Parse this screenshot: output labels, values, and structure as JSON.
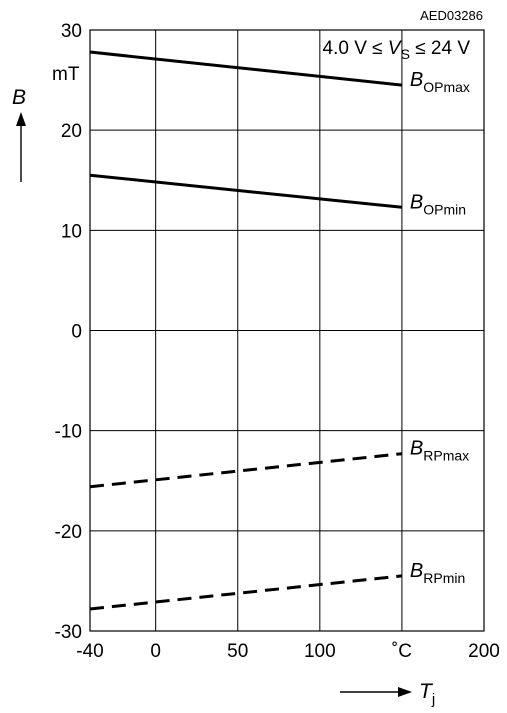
{
  "chart_data": {
    "type": "line",
    "reference_code": "AED03286",
    "annotation": {
      "prefix": "4.0 V ≤ ",
      "var": "V",
      "sub": "S",
      "suffix": " ≤ 24 V"
    },
    "ylabel": {
      "var": "B",
      "unit": "mT"
    },
    "xlabel": {
      "var": "T",
      "sub": "j",
      "unit": "˚C"
    },
    "xlim": [
      -40,
      200
    ],
    "ylim": [
      -30,
      30
    ],
    "x_ticks": [
      -40,
      0,
      50,
      100,
      150,
      200
    ],
    "x_tick_labels": [
      "-40",
      "0",
      "50",
      "100",
      "˚C",
      "200"
    ],
    "y_ticks": [
      30,
      20,
      10,
      0,
      -10,
      -20,
      -30
    ],
    "y_tick_labels": [
      "30",
      "20",
      "10",
      "0",
      "-10",
      "-20",
      "-30"
    ],
    "grid": true,
    "series": [
      {
        "name": "B",
        "sub": "OPmax",
        "style": "solid",
        "x": [
          -40,
          150
        ],
        "y": [
          27.8,
          24.5
        ]
      },
      {
        "name": "B",
        "sub": "OPmin",
        "style": "solid",
        "x": [
          -40,
          150
        ],
        "y": [
          15.5,
          12.3
        ]
      },
      {
        "name": "B",
        "sub": "RPmax",
        "style": "dashed",
        "x": [
          -40,
          150
        ],
        "y": [
          -15.6,
          -12.3
        ]
      },
      {
        "name": "B",
        "sub": "RPmin",
        "style": "dashed",
        "x": [
          -40,
          150
        ],
        "y": [
          -27.8,
          -24.5
        ]
      }
    ]
  }
}
